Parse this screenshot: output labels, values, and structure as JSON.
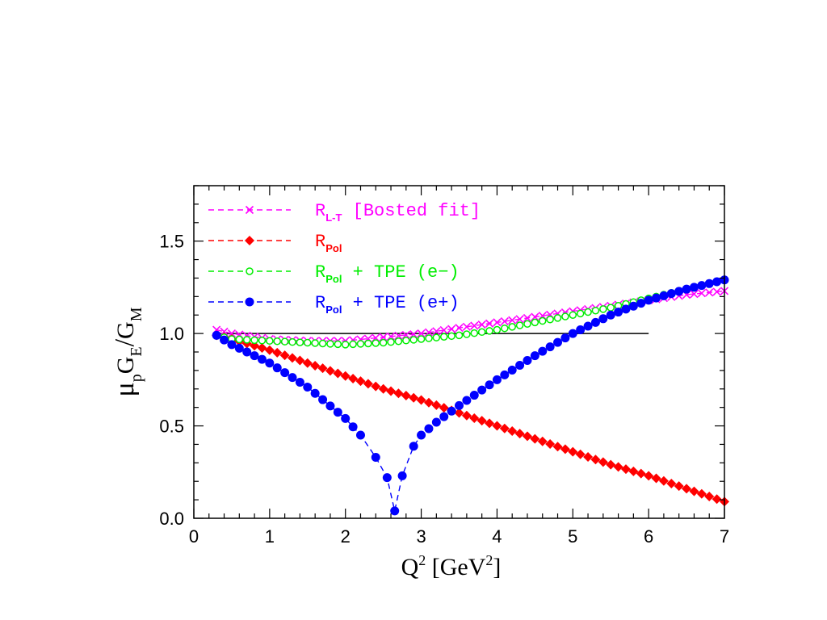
{
  "chart_data": {
    "type": "line",
    "xlim": [
      0,
      7
    ],
    "ylim": [
      0,
      1.8
    ],
    "x_ticks": [
      "0",
      "1",
      "2",
      "3",
      "4",
      "5",
      "6",
      "7"
    ],
    "y_ticks": [
      "0.0",
      "0.5",
      "1.0",
      "1.5"
    ],
    "xlabel": {
      "main": "Q",
      "sup": "2",
      "bracket_open": "[",
      "unit": "GeV",
      "unit_sup": "2",
      "bracket_close": "]"
    },
    "ylabel": {
      "mu": "μ",
      "mu_sub": "p",
      "ge": "G",
      "ge_sub": "E",
      "slash": "/",
      "gm": "G",
      "gm_sub": "M"
    },
    "reference_line": {
      "y": 1.0,
      "x_from": 0.3,
      "x_to": 6.0,
      "color": "#000000"
    },
    "legend": [
      {
        "label": "R",
        "sub": "L-T",
        "rest": " [Bosted fit]",
        "color": "#ff00ff",
        "marker": "cross"
      },
      {
        "label": "R",
        "sub": "Pol",
        "rest": "",
        "color": "#ff0000",
        "marker": "diamond"
      },
      {
        "label": "R",
        "sub": "Pol",
        "rest": " + TPE (e−)",
        "color": "#00ee00",
        "marker": "open-circle"
      },
      {
        "label": "R",
        "sub": "Pol",
        "rest": " + TPE (e+)",
        "color": "#0000ff",
        "marker": "filled-circle"
      }
    ],
    "series": [
      {
        "name": "R_L-T [Bosted fit]",
        "color": "#ff00ff",
        "marker": "cross",
        "x": [
          0.3,
          0.5,
          1.0,
          1.5,
          2.0,
          2.5,
          3.0,
          3.5,
          4.0,
          4.5,
          5.0,
          5.5,
          6.0,
          6.5,
          7.0
        ],
        "y": [
          1.02,
          1.0,
          0.97,
          0.96,
          0.96,
          0.98,
          1.0,
          1.03,
          1.06,
          1.09,
          1.12,
          1.15,
          1.18,
          1.21,
          1.23
        ]
      },
      {
        "name": "R_Pol",
        "color": "#ff0000",
        "marker": "diamond",
        "x": [
          0.3,
          0.5,
          1.0,
          1.5,
          2.0,
          2.5,
          3.0,
          3.5,
          4.0,
          4.5,
          5.0,
          5.5,
          6.0,
          6.5,
          7.0
        ],
        "y": [
          0.99,
          0.97,
          0.91,
          0.84,
          0.77,
          0.7,
          0.64,
          0.57,
          0.5,
          0.43,
          0.36,
          0.29,
          0.23,
          0.16,
          0.09
        ]
      },
      {
        "name": "R_Pol + TPE (e−)",
        "color": "#00ee00",
        "marker": "open-circle",
        "x": [
          0.3,
          0.5,
          1.0,
          1.5,
          2.0,
          2.5,
          3.0,
          3.5,
          4.0,
          4.5,
          5.0,
          5.5,
          6.0,
          6.5,
          7.0
        ],
        "y": [
          0.99,
          0.97,
          0.96,
          0.95,
          0.94,
          0.95,
          0.97,
          0.99,
          1.02,
          1.06,
          1.1,
          1.14,
          1.19,
          1.24,
          1.29
        ]
      },
      {
        "name": "R_Pol + TPE (e+)",
        "color": "#0000ff",
        "marker": "filled-circle",
        "x": [
          0.3,
          0.5,
          1.0,
          1.5,
          2.0,
          2.2,
          2.4,
          2.55,
          2.65,
          2.75,
          2.9,
          3.0,
          3.2,
          3.5,
          4.0,
          4.5,
          5.0,
          5.5,
          6.0,
          6.5,
          7.0
        ],
        "y": [
          0.99,
          0.94,
          0.84,
          0.71,
          0.54,
          0.45,
          0.33,
          0.22,
          0.04,
          0.23,
          0.39,
          0.45,
          0.52,
          0.61,
          0.75,
          0.88,
          1.0,
          1.1,
          1.18,
          1.24,
          1.29
        ]
      }
    ]
  }
}
